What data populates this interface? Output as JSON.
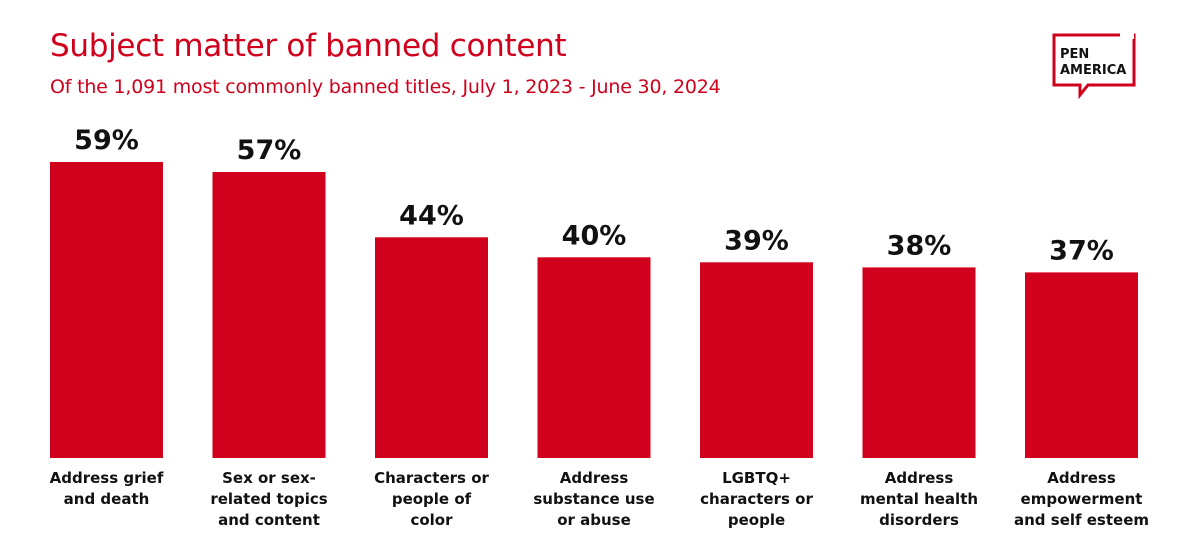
{
  "title": "Subject matter of banned content",
  "subtitle": "Of the 1,091 most commonly banned titles, July 1, 2023 - June 30, 2024",
  "logo": {
    "line1": "PEN",
    "line2": "AMERICA"
  },
  "colors": {
    "accent": "#d1001c",
    "text": "#111111",
    "background": "#ffffff"
  },
  "chart_data": {
    "type": "bar",
    "title": "Subject matter of banned content",
    "subtitle": "Of the 1,091 most commonly banned titles, July 1, 2023 - June 30, 2024",
    "categories": [
      [
        "Address grief",
        "and death"
      ],
      [
        "Sex or sex-",
        "related topics",
        "and content"
      ],
      [
        "Characters or",
        "people of",
        "color"
      ],
      [
        "Address",
        "substance use",
        "or abuse"
      ],
      [
        "LGBTQ+",
        "characters or",
        "people"
      ],
      [
        "Address",
        "mental health",
        "disorders"
      ],
      [
        "Address",
        "empowerment",
        "and self esteem"
      ]
    ],
    "values": [
      59,
      57,
      44,
      40,
      39,
      38,
      37
    ],
    "value_labels": [
      "59%",
      "57%",
      "44%",
      "40%",
      "39%",
      "38%",
      "37%"
    ],
    "unit": "%",
    "xlabel": "",
    "ylabel": "",
    "ylim": [
      0,
      59
    ],
    "grid": false,
    "legend": "none",
    "bar_color": "#d1001c"
  }
}
